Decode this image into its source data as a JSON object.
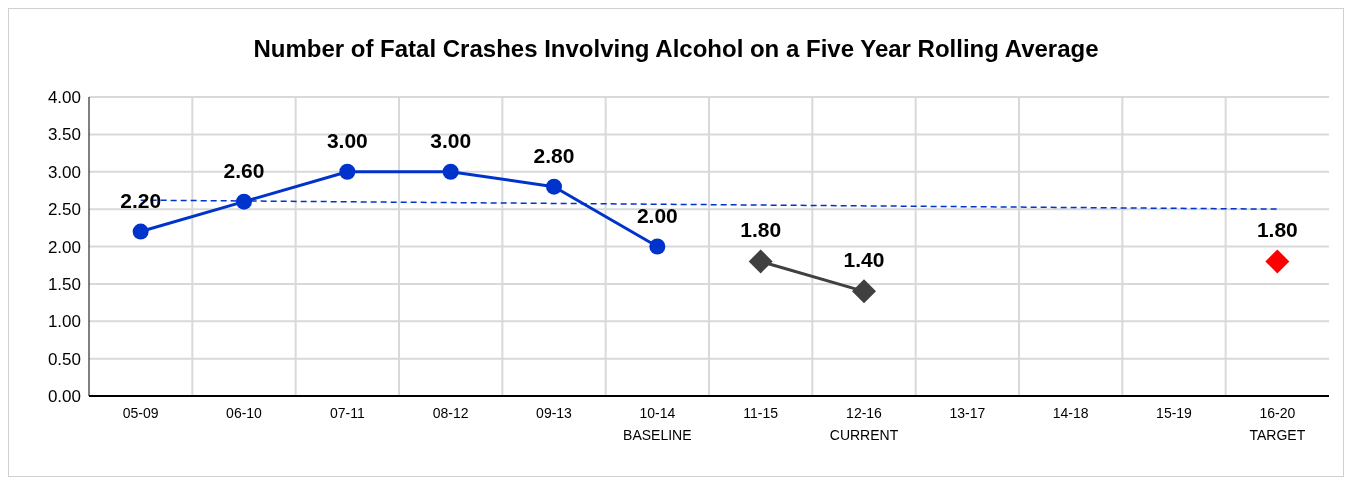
{
  "chart_data": {
    "type": "line",
    "title": "Number of Fatal Crashes Involving Alcohol on a Five Year Rolling Average",
    "categories": [
      "05-09",
      "06-10",
      "07-11",
      "08-12",
      "09-13",
      "10-14\nBASELINE",
      "11-15",
      "12-16\nCURRENT",
      "13-17",
      "14-18",
      "15-19",
      "16-20\nTARGET"
    ],
    "series": [
      {
        "color": "#0033cc",
        "marker": "circle",
        "line_style": "solid",
        "values": [
          2.2,
          2.6,
          3.0,
          3.0,
          2.8,
          2.0,
          null,
          null,
          null,
          null,
          null,
          null
        ],
        "value_labels": [
          "2.20",
          "2.60",
          "3.00",
          "3.00",
          "2.80",
          "2.00",
          null,
          null,
          null,
          null,
          null,
          null
        ]
      },
      {
        "color": "#404040",
        "marker": "diamond",
        "line_style": "solid",
        "values": [
          null,
          null,
          null,
          null,
          null,
          null,
          1.8,
          1.4,
          null,
          null,
          null,
          null
        ],
        "value_labels": [
          null,
          null,
          null,
          null,
          null,
          null,
          "1.80",
          "1.40",
          null,
          null,
          null,
          null
        ]
      },
      {
        "color": "#ff0000",
        "marker": "diamond",
        "line_style": "solid",
        "values": [
          null,
          null,
          null,
          null,
          null,
          null,
          null,
          null,
          null,
          null,
          null,
          1.8
        ],
        "value_labels": [
          null,
          null,
          null,
          null,
          null,
          null,
          null,
          null,
          null,
          null,
          null,
          "1.80"
        ]
      },
      {
        "color": "#0033cc",
        "marker": "none",
        "line_style": "dashed",
        "values": [
          2.62,
          null,
          null,
          null,
          null,
          null,
          null,
          null,
          null,
          null,
          null,
          2.5
        ]
      }
    ],
    "ylim": [
      0,
      4
    ],
    "yticks": [
      {
        "value": 0,
        "label": "0.00"
      },
      {
        "value": 0.5,
        "label": "0.50"
      },
      {
        "value": 1,
        "label": "1.00"
      },
      {
        "value": 1.5,
        "label": "1.50"
      },
      {
        "value": 2,
        "label": "2.00"
      },
      {
        "value": 2.5,
        "label": "2.50"
      },
      {
        "value": 3,
        "label": "3.00"
      },
      {
        "value": 3.5,
        "label": "3.50"
      },
      {
        "value": 4,
        "label": "4.00"
      }
    ],
    "grid": true,
    "legend": false
  }
}
